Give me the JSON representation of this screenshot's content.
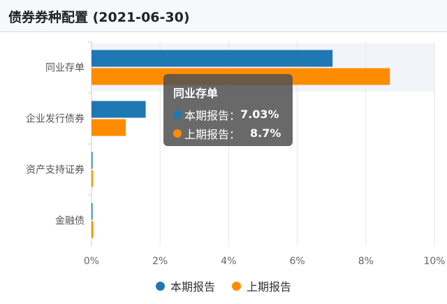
{
  "header": {
    "title": "债券券种配置 (2021-06-30)"
  },
  "colors": {
    "current": "#1f77b4",
    "previous": "#ff8c00"
  },
  "tooltip": {
    "title": "同业存单",
    "rows": [
      {
        "label": "本期报告：",
        "value": "7.03%"
      },
      {
        "label": "上期报告：",
        "value": "8.7%"
      }
    ]
  },
  "legend": {
    "items": [
      "本期报告",
      "上期报告"
    ]
  },
  "chart_data": {
    "type": "bar",
    "orientation": "horizontal",
    "categories": [
      "同业存单",
      "企业发行债券",
      "资产支持证券",
      "金融债"
    ],
    "series": [
      {
        "name": "本期报告",
        "values": [
          7.03,
          1.58,
          0.02,
          0.01
        ]
      },
      {
        "name": "上期报告",
        "values": [
          8.7,
          1.0,
          0.04,
          0.05
        ]
      }
    ],
    "xlim": [
      0,
      10
    ],
    "xticks": [
      "0%",
      "2%",
      "4%",
      "6%",
      "8%",
      "10%"
    ],
    "grid": true,
    "legend_position": "bottom",
    "highlighted_category": "同业存单"
  }
}
